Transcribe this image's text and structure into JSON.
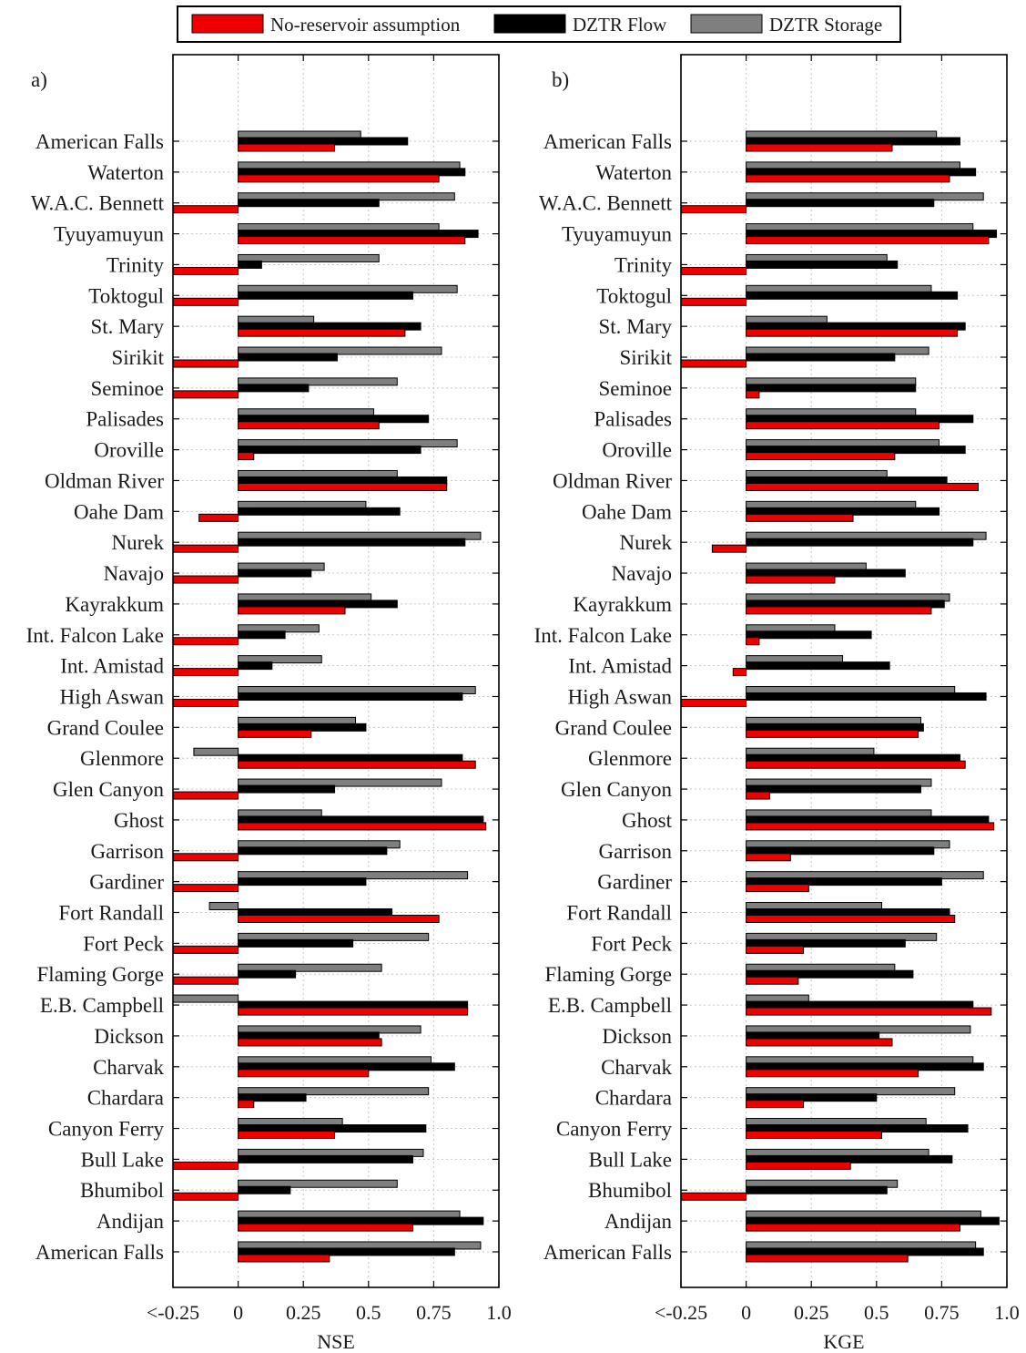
{
  "legend": {
    "items": [
      {
        "label": "No-reservoir assumption",
        "color": "#ee0000"
      },
      {
        "label": "DZTR Flow",
        "color": "#000000"
      },
      {
        "label": "DZTR Storage",
        "color": "#7f7f7f"
      }
    ],
    "position": "top-center"
  },
  "chart_data": [
    {
      "type": "bar",
      "orientation": "horizontal",
      "panel_label": "a)",
      "xlabel": "NSE",
      "xlim": [
        -0.25,
        1.0
      ],
      "xticks": [
        -0.25,
        0,
        0.25,
        0.5,
        0.75,
        1.0
      ],
      "xtick_labels": [
        "<-0.25",
        "0",
        "0.25",
        "0.5",
        "0.75",
        "1.0"
      ],
      "grid": true,
      "categories": [
        "American Falls",
        "Waterton",
        "W.A.C. Bennett",
        "Tyuyamuyun",
        "Trinity",
        "Toktogul",
        "St. Mary",
        "Sirikit",
        "Seminoe",
        "Palisades",
        "Oroville",
        "Oldman River",
        "Oahe Dam",
        "Nurek",
        "Navajo",
        "Kayrakkum",
        "Int. Falcon Lake",
        "Int. Amistad",
        "High Aswan",
        "Grand Coulee",
        "Glenmore",
        "Glen Canyon",
        "Ghost",
        "Garrison",
        "Gardiner",
        "Fort Randall",
        "Fort Peck",
        "Flaming Gorge",
        "E.B. Campbell",
        "Dickson",
        "Charvak",
        "Chardara",
        "Canyon Ferry",
        "Bull Lake",
        "Bhumibol",
        "Andijan",
        "American Falls"
      ],
      "series": [
        {
          "name": "No-reservoir assumption",
          "color": "#ee0000",
          "values": [
            0.37,
            0.77,
            -0.25,
            0.87,
            -0.25,
            -0.25,
            0.64,
            -0.25,
            -0.25,
            0.54,
            0.06,
            0.8,
            -0.15,
            -0.25,
            -0.25,
            0.41,
            -0.25,
            -0.25,
            -0.25,
            0.28,
            0.91,
            -0.25,
            0.95,
            -0.25,
            -0.25,
            0.77,
            -0.25,
            -0.25,
            0.88,
            0.55,
            0.5,
            0.06,
            0.37,
            -0.25,
            -0.25,
            0.67,
            0.35
          ]
        },
        {
          "name": "DZTR Flow",
          "color": "#000000",
          "values": [
            0.65,
            0.87,
            0.54,
            0.92,
            0.09,
            0.67,
            0.7,
            0.38,
            0.27,
            0.73,
            0.7,
            0.8,
            0.62,
            0.87,
            0.28,
            0.61,
            0.18,
            0.13,
            0.86,
            0.49,
            0.86,
            0.37,
            0.94,
            0.57,
            0.49,
            0.59,
            0.44,
            0.22,
            0.88,
            0.54,
            0.83,
            0.26,
            0.72,
            0.67,
            0.2,
            0.94,
            0.83
          ]
        },
        {
          "name": "DZTR Storage",
          "color": "#7f7f7f",
          "values": [
            0.47,
            0.85,
            0.83,
            0.77,
            0.54,
            0.84,
            0.29,
            0.78,
            0.61,
            0.52,
            0.84,
            0.61,
            0.49,
            0.93,
            0.33,
            0.51,
            0.31,
            0.32,
            0.91,
            0.45,
            -0.17,
            0.78,
            0.32,
            0.62,
            0.88,
            -0.11,
            0.73,
            0.55,
            -0.25,
            0.7,
            0.74,
            0.73,
            0.4,
            0.71,
            0.61,
            0.85,
            0.93
          ]
        }
      ]
    },
    {
      "type": "bar",
      "orientation": "horizontal",
      "panel_label": "b)",
      "xlabel": "KGE",
      "xlim": [
        -0.25,
        1.0
      ],
      "xticks": [
        -0.25,
        0,
        0.25,
        0.5,
        0.75,
        1.0
      ],
      "xtick_labels": [
        "<-0.25",
        "0",
        "0.25",
        "0.5",
        "0.75",
        "1.0"
      ],
      "grid": true,
      "categories": [
        "American Falls",
        "Waterton",
        "W.A.C. Bennett",
        "Tyuyamuyun",
        "Trinity",
        "Toktogul",
        "St. Mary",
        "Sirikit",
        "Seminoe",
        "Palisades",
        "Oroville",
        "Oldman River",
        "Oahe Dam",
        "Nurek",
        "Navajo",
        "Kayrakkum",
        "Int. Falcon Lake",
        "Int. Amistad",
        "High Aswan",
        "Grand Coulee",
        "Glenmore",
        "Glen Canyon",
        "Ghost",
        "Garrison",
        "Gardiner",
        "Fort Randall",
        "Fort Peck",
        "Flaming Gorge",
        "E.B. Campbell",
        "Dickson",
        "Charvak",
        "Chardara",
        "Canyon Ferry",
        "Bull Lake",
        "Bhumibol",
        "Andijan",
        "American Falls"
      ],
      "series": [
        {
          "name": "No-reservoir assumption",
          "color": "#ee0000",
          "values": [
            0.56,
            0.78,
            -0.25,
            0.93,
            -0.25,
            -0.25,
            0.81,
            -0.25,
            0.05,
            0.74,
            0.57,
            0.89,
            0.41,
            -0.13,
            0.34,
            0.71,
            0.05,
            -0.05,
            -0.25,
            0.66,
            0.84,
            0.09,
            0.95,
            0.17,
            0.24,
            0.8,
            0.22,
            0.2,
            0.94,
            0.56,
            0.66,
            0.22,
            0.52,
            0.4,
            -0.25,
            0.82,
            0.62
          ]
        },
        {
          "name": "DZTR Flow",
          "color": "#000000",
          "values": [
            0.82,
            0.88,
            0.72,
            0.96,
            0.58,
            0.81,
            0.84,
            0.57,
            0.65,
            0.87,
            0.84,
            0.77,
            0.74,
            0.87,
            0.61,
            0.76,
            0.48,
            0.55,
            0.92,
            0.68,
            0.82,
            0.67,
            0.93,
            0.72,
            0.75,
            0.78,
            0.61,
            0.64,
            0.87,
            0.51,
            0.91,
            0.5,
            0.85,
            0.79,
            0.54,
            0.97,
            0.91
          ]
        },
        {
          "name": "DZTR Storage",
          "color": "#7f7f7f",
          "values": [
            0.73,
            0.82,
            0.91,
            0.87,
            0.54,
            0.71,
            0.31,
            0.7,
            0.65,
            0.65,
            0.74,
            0.54,
            0.65,
            0.92,
            0.46,
            0.78,
            0.34,
            0.37,
            0.8,
            0.67,
            0.49,
            0.71,
            0.71,
            0.78,
            0.91,
            0.52,
            0.73,
            0.57,
            0.24,
            0.86,
            0.87,
            0.8,
            0.69,
            0.7,
            0.58,
            0.9,
            0.88
          ]
        }
      ]
    }
  ]
}
